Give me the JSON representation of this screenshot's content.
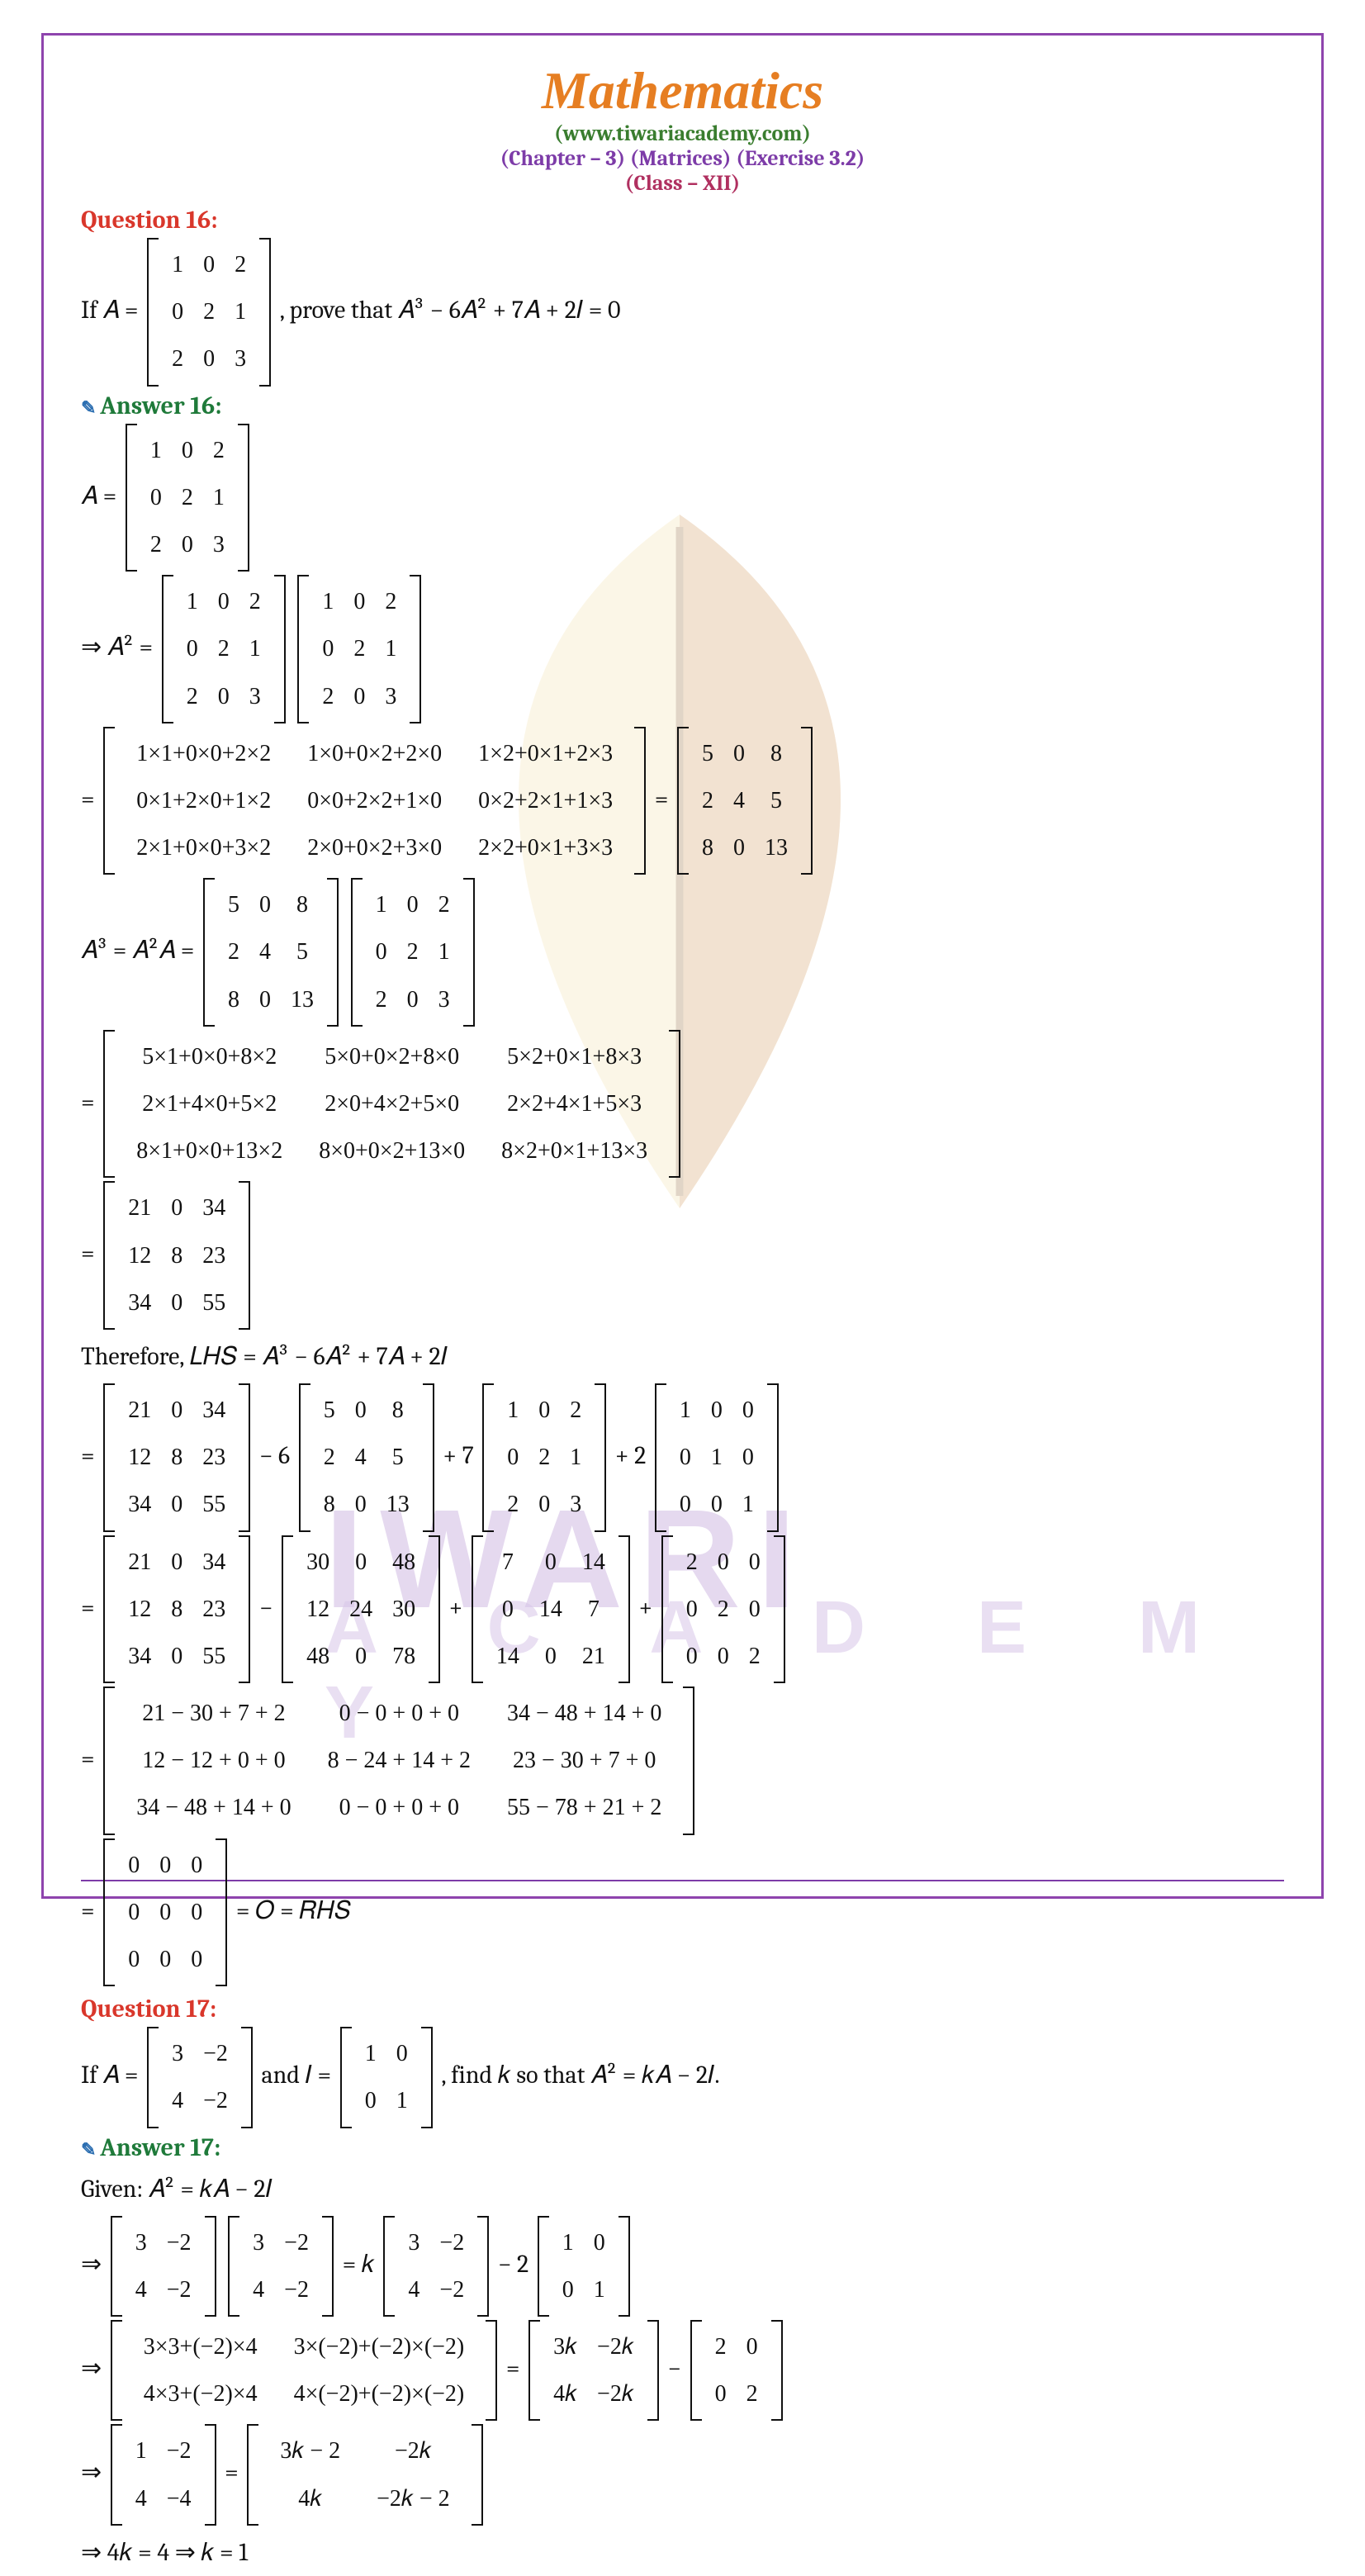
{
  "header": {
    "title": "Mathematics",
    "site": "(www.tiwariacademy.com)",
    "chapter": "(Chapter – 3) (Matrices) (Exercise 3.2)",
    "cls": "(Class – XII)"
  },
  "watermark": {
    "line1": "IWARI",
    "line2": "A C A D E M Y"
  },
  "colors": {
    "frame": "#8e44ad",
    "title": "#e67e22",
    "site": "#3a7d2f",
    "chapter": "#7d3ca8",
    "cls": "#b03060",
    "question": "#d9372b",
    "answer": "#1f7a3a",
    "body": "#111111",
    "wm": "#d8c6e8",
    "leaf_dark": "#c77f3c",
    "leaf_light": "#f0d58a"
  },
  "q16": {
    "label": "Question 16:",
    "prompt_a": "If 𝐴 = ",
    "prompt_b": ", prove that 𝐴³ − 6𝐴² + 7𝐴 + 2𝐼 = 0",
    "A": [
      [
        "1",
        "0",
        "2"
      ],
      [
        "0",
        "2",
        "1"
      ],
      [
        "2",
        "0",
        "3"
      ]
    ],
    "ans_label": "Answer 16:",
    "A_eq": "𝐴 = ",
    "A2_lead": "⇒ 𝐴² = ",
    "A2_calc": [
      [
        "1×1+0×0+2×2",
        "1×0+0×2+2×0",
        "1×2+0×1+2×3"
      ],
      [
        "0×1+2×0+1×2",
        "0×0+2×2+1×0",
        "0×2+2×1+1×3"
      ],
      [
        "2×1+0×0+3×2",
        "2×0+0×2+3×0",
        "2×2+0×1+3×3"
      ]
    ],
    "A2": [
      [
        "5",
        "0",
        "8"
      ],
      [
        "2",
        "4",
        "5"
      ],
      [
        "8",
        "0",
        "13"
      ]
    ],
    "A3_lead": "𝐴³ = 𝐴²𝐴  = ",
    "A3_calc": [
      [
        "5×1+0×0+8×2",
        "5×0+0×2+8×0",
        "5×2+0×1+8×3"
      ],
      [
        "2×1+4×0+5×2",
        "2×0+4×2+5×0",
        "2×2+4×1+5×3"
      ],
      [
        "8×1+0×0+13×2",
        "8×0+0×2+13×0",
        "8×2+0×1+13×3"
      ]
    ],
    "A3": [
      [
        "21",
        "0",
        "34"
      ],
      [
        "12",
        "8",
        "23"
      ],
      [
        "34",
        "0",
        "55"
      ]
    ],
    "therefore": "Therefore, 𝐿𝐻𝑆 = 𝐴³ − 6𝐴² + 7𝐴 + 2𝐼",
    "six_A2": [
      [
        "30",
        "0",
        "48"
      ],
      [
        "12",
        "24",
        "30"
      ],
      [
        "48",
        "0",
        "78"
      ]
    ],
    "seven_A": [
      [
        "7",
        "0",
        "14"
      ],
      [
        "0",
        "14",
        "7"
      ],
      [
        "14",
        "0",
        "21"
      ]
    ],
    "two_I": [
      [
        "2",
        "0",
        "0"
      ],
      [
        "0",
        "2",
        "0"
      ],
      [
        "0",
        "0",
        "2"
      ]
    ],
    "I": [
      [
        "1",
        "0",
        "0"
      ],
      [
        "0",
        "1",
        "0"
      ],
      [
        "0",
        "0",
        "1"
      ]
    ],
    "sum_calc": [
      [
        "21 − 30 + 7 + 2",
        "0 − 0 + 0 + 0",
        "34 − 48 + 14 + 0"
      ],
      [
        "12 − 12 + 0 + 0",
        "8 − 24 + 14 + 2",
        "23 − 30 + 7 + 0"
      ],
      [
        "34 − 48 + 14 + 0",
        "0 − 0 + 0 + 0",
        "55 − 78 + 21 + 2"
      ]
    ],
    "zero": [
      [
        "0",
        "0",
        "0"
      ],
      [
        "0",
        "0",
        "0"
      ],
      [
        "0",
        "0",
        "0"
      ]
    ],
    "rhs": " = 𝑂  = 𝑅𝐻𝑆"
  },
  "q17": {
    "label": "Question 17:",
    "prompt_a": "If 𝐴 = ",
    "prompt_b": " and 𝐼 = ",
    "prompt_c": ", find 𝑘 so that 𝐴² = 𝑘𝐴 − 2𝐼.",
    "A": [
      [
        "3",
        "−2"
      ],
      [
        "4",
        "−2"
      ]
    ],
    "I": [
      [
        "1",
        "0"
      ],
      [
        "0",
        "1"
      ]
    ],
    "ans_label": "Answer 17:",
    "given": "Given: 𝐴² = 𝑘𝐴 − 2𝐼",
    "l1a": "⇒ ",
    "l1b": " = 𝑘 ",
    "l1c": " − 2 ",
    "calc": [
      [
        "3×3+(−2)×4",
        "3×(−2)+(−2)×(−2)"
      ],
      [
        "4×3+(−2)×4",
        "4×(−2)+(−2)×(−2)"
      ]
    ],
    "kA": [
      [
        "3𝑘",
        "−2𝑘"
      ],
      [
        "4𝑘",
        "−2𝑘"
      ]
    ],
    "twoI": [
      [
        "2",
        "0"
      ],
      [
        "0",
        "2"
      ]
    ],
    "lhs_res": [
      [
        "1",
        "−2"
      ],
      [
        "4",
        "−4"
      ]
    ],
    "rhs_res": [
      [
        "3𝑘 − 2",
        "−2𝑘"
      ],
      [
        "4𝑘",
        "−2𝑘 − 2"
      ]
    ],
    "final": "⇒ 4𝑘 = 4      ⇒ 𝑘 = 1"
  }
}
